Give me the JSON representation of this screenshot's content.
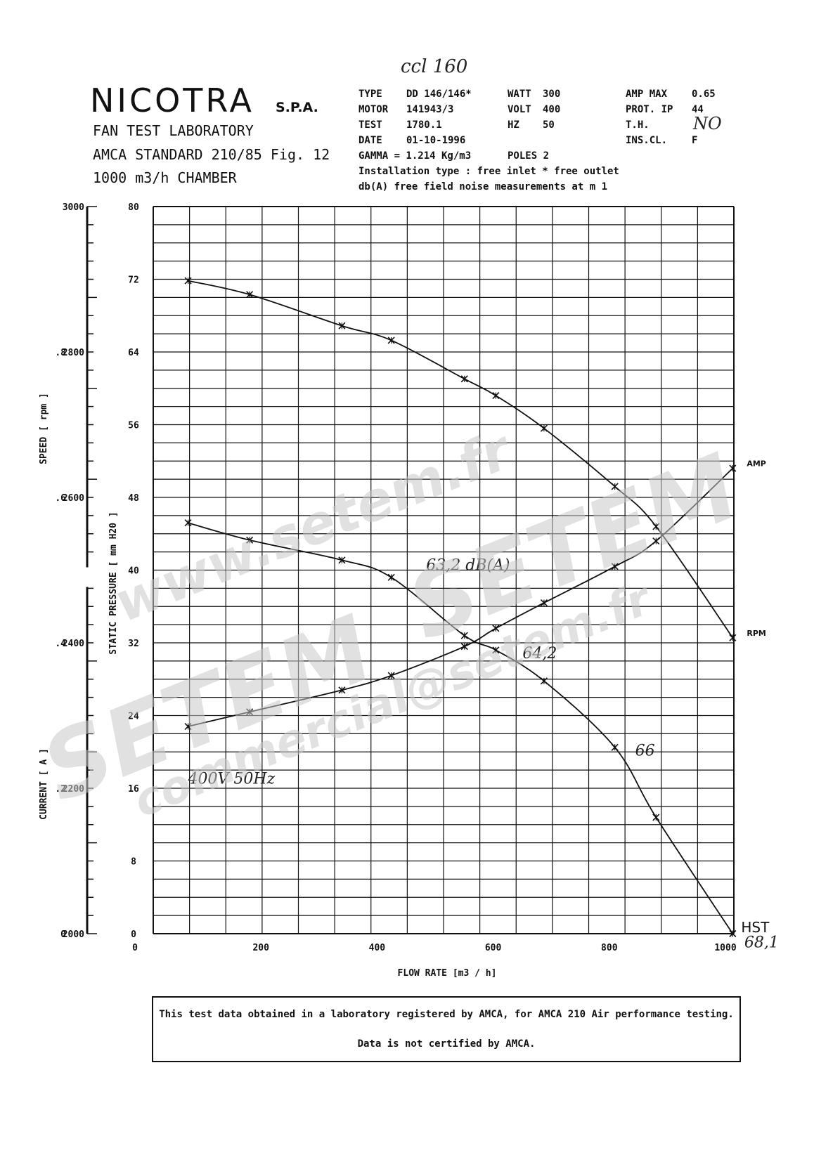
{
  "header": {
    "handwritten_ref": "ccl 160",
    "brand": "NICOTRA",
    "brand_suffix": "S.P.A.",
    "lab_lines": [
      "FAN TEST LABORATORY",
      "AMCA STANDARD 210/85 Fig. 12",
      "1000 m3/h   CHAMBER"
    ],
    "specs": {
      "col1": [
        "TYPE",
        "MOTOR",
        "TEST",
        "DATE"
      ],
      "col1_values": [
        "DD 146/146*",
        "141943/3",
        "1780.1",
        "01-10-1996"
      ],
      "col2": [
        "WATT",
        "VOLT",
        "HZ"
      ],
      "col2_values": [
        "300",
        "400",
        "50"
      ],
      "col3": [
        "AMP MAX",
        "PROT.  IP",
        "T.H.",
        "INS.CL."
      ],
      "col3_values": [
        "0.65",
        "44",
        "",
        "F"
      ],
      "th_handwritten": "NO",
      "gamma": "GAMMA = 1.214 Kg/m3",
      "poles": "POLES 2",
      "installation": "Installation type :  free inlet * free outlet",
      "noise": "db(A)  free field noise measurements at m  1"
    }
  },
  "chart_data": {
    "type": "line",
    "x": {
      "label": "FLOW RATE   [m3 / h]",
      "range": [
        0,
        1000
      ],
      "ticks": [
        0,
        200,
        400,
        600,
        800,
        1000
      ]
    },
    "y_axes": [
      {
        "id": "speed",
        "label": "SPEED    [ rpm ]",
        "range": [
          2000,
          3000
        ],
        "ticks": [
          2000,
          2200,
          2400,
          2600,
          2800,
          3000
        ]
      },
      {
        "id": "pressure",
        "label": "STATIC PRESSURE    [ mm H20 ]",
        "range": [
          0,
          80
        ],
        "ticks": [
          0,
          8,
          16,
          24,
          32,
          40,
          48,
          56,
          64,
          72,
          80
        ]
      },
      {
        "id": "current",
        "label": "CURRENT    [ A ]",
        "range": [
          0,
          1.0
        ],
        "ticks": [
          0,
          0.2,
          0.4,
          0.6,
          0.8
        ],
        "tick_labels": [
          "0",
          ".2",
          ".4",
          ".6",
          ".8"
        ]
      }
    ],
    "grid": true,
    "series": [
      {
        "name": "RPM",
        "axis": "speed",
        "points": [
          [
            60,
            2898
          ],
          [
            166,
            2879
          ],
          [
            325,
            2836
          ],
          [
            410,
            2816
          ],
          [
            536,
            2763
          ],
          [
            590,
            2740
          ],
          [
            673,
            2695
          ],
          [
            795,
            2615
          ],
          [
            866,
            2560
          ],
          [
            998,
            2407
          ]
        ]
      },
      {
        "name": "HST",
        "axis": "pressure",
        "points": [
          [
            60,
            45.2
          ],
          [
            166,
            43.3
          ],
          [
            325,
            41.1
          ],
          [
            410,
            39.2
          ],
          [
            536,
            32.8
          ],
          [
            590,
            31.2
          ],
          [
            673,
            27.8
          ],
          [
            795,
            20.5
          ],
          [
            866,
            12.8
          ],
          [
            998,
            0
          ]
        ]
      },
      {
        "name": "AMP",
        "axis": "current",
        "points": [
          [
            60,
            0.285
          ],
          [
            166,
            0.305
          ],
          [
            325,
            0.335
          ],
          [
            410,
            0.355
          ],
          [
            536,
            0.395
          ],
          [
            590,
            0.42
          ],
          [
            673,
            0.455
          ],
          [
            795,
            0.505
          ],
          [
            866,
            0.54
          ],
          [
            998,
            0.64
          ]
        ]
      }
    ],
    "annotations": [
      {
        "text": "63,2  dB(A)",
        "x": 470,
        "pressure": 40
      },
      {
        "text": "64,2",
        "x": 636,
        "pressure": 30.3
      },
      {
        "text": "66",
        "x": 830,
        "pressure": 19.6
      },
      {
        "text": "68,1",
        "x": 1018,
        "pressure": -1.5
      },
      {
        "text": "400V    50Hz",
        "x": 60,
        "pressure": 16.5
      }
    ]
  },
  "footer": {
    "line1": "This test data obtained in a laboratory registered by AMCA, for AMCA 210 Air performance testing.",
    "line2": "Data is not certified by AMCA."
  },
  "watermarks": [
    "www.setem.fr",
    "SETEM",
    "SETEM",
    "commercial@setem.fr"
  ]
}
